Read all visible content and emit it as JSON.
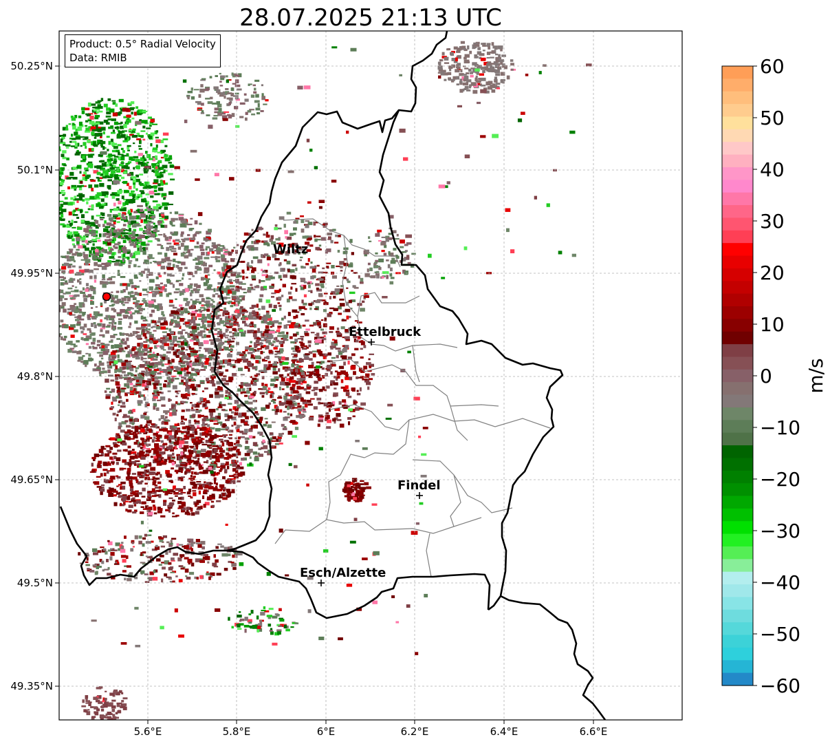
{
  "title": "28.07.2025 21:13 UTC",
  "info": {
    "product": "Product: 0.5° Radial Velocity",
    "source": "Data: RMIB"
  },
  "lat_ticks": [
    "50.25°N",
    "50.1°N",
    "49.95°N",
    "49.8°N",
    "49.65°N",
    "49.5°N",
    "49.35°N"
  ],
  "lon_ticks": [
    "5.6°E",
    "5.8°E",
    "6°E",
    "6.2°E",
    "6.4°E",
    "6.6°E"
  ],
  "cities": [
    {
      "name": "Wiltz"
    },
    {
      "name": "Ettelbruck"
    },
    {
      "name": "Findel"
    },
    {
      "name": "Esch/Alzette"
    }
  ],
  "colorbar": {
    "label": "m/s",
    "ticks": [
      "60",
      "50",
      "40",
      "30",
      "20",
      "10",
      "0",
      "−10",
      "−20",
      "−30",
      "−40",
      "−50",
      "−60"
    ]
  },
  "colors": {
    "border": "#000000",
    "cantons": "#808080",
    "radar_site": "#ff0000"
  }
}
